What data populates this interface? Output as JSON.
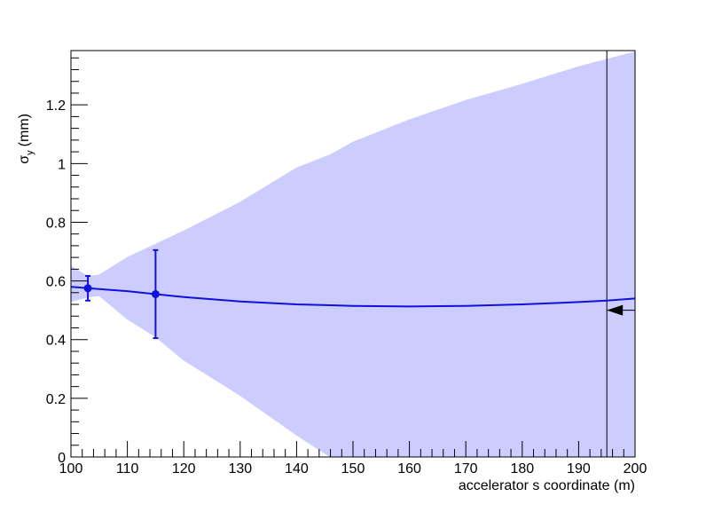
{
  "chart_data": {
    "type": "line",
    "xlabel": "accelerator s coordinate (m)",
    "ylabel": [
      "σ",
      "y",
      "(mm)"
    ],
    "xlim": [
      100,
      200
    ],
    "ylim": [
      0,
      1.385
    ],
    "xticks": [
      100,
      110,
      120,
      130,
      140,
      150,
      160,
      170,
      180,
      190,
      200
    ],
    "yticks": [
      0,
      0.2,
      0.4,
      0.6,
      0.8,
      1,
      1.2
    ],
    "band": {
      "color": "#ccccff",
      "x": [
        100,
        103,
        105,
        110,
        115,
        120,
        130,
        140,
        146,
        150,
        160,
        170,
        180,
        190,
        200
      ],
      "upper": [
        0.65,
        0.615,
        0.62,
        0.68,
        0.725,
        0.77,
        0.868,
        0.985,
        1.03,
        1.073,
        1.149,
        1.215,
        1.27,
        1.33,
        1.38
      ],
      "lower": [
        0.53,
        0.545,
        0.55,
        0.47,
        0.41,
        0.33,
        0.21,
        0.075,
        0,
        0,
        0,
        0,
        0,
        0,
        0
      ]
    },
    "fit": {
      "color": "#1111dd",
      "x": [
        100,
        110,
        115,
        120,
        130,
        140,
        150,
        160,
        170,
        180,
        190,
        195,
        200
      ],
      "values": [
        0.58,
        0.565,
        0.555,
        0.545,
        0.53,
        0.52,
        0.515,
        0.513,
        0.515,
        0.52,
        0.528,
        0.533,
        0.54
      ]
    },
    "points": {
      "color": "#1111dd",
      "x": [
        103,
        115
      ],
      "values": [
        0.575,
        0.555
      ],
      "errors": [
        0.042,
        0.15
      ]
    },
    "vline_x": 195,
    "arrow_y": 0.5
  }
}
